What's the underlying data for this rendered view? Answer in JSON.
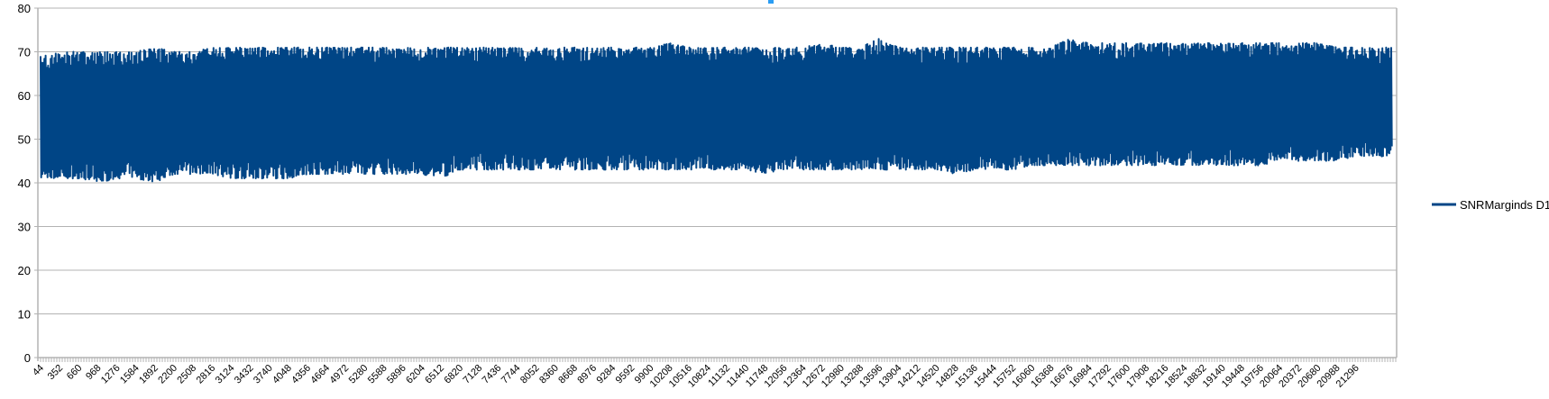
{
  "chart_data": {
    "type": "line",
    "title": "",
    "xlabel": "",
    "ylabel": "",
    "ylim": [
      0,
      80
    ],
    "yticks": [
      0,
      10,
      20,
      30,
      40,
      50,
      60,
      70,
      80
    ],
    "xlim": [
      44,
      22000
    ],
    "x_tick_labels": [
      "44",
      "352",
      "660",
      "968",
      "1276",
      "1584",
      "1892",
      "2200",
      "2508",
      "2816",
      "3124",
      "3432",
      "3740",
      "4048",
      "4356",
      "4664",
      "4972",
      "5280",
      "5588",
      "5896",
      "6204",
      "6512",
      "6820",
      "7128",
      "7436",
      "7744",
      "8052",
      "8360",
      "8668",
      "8976",
      "9284",
      "9592",
      "9900",
      "10208",
      "10516",
      "10824",
      "11132",
      "11440",
      "11748",
      "12056",
      "12364",
      "12672",
      "12980",
      "13288",
      "13596",
      "13904",
      "14212",
      "14520",
      "14828",
      "15136",
      "15444",
      "15752",
      "16060",
      "16368",
      "16676",
      "16984",
      "17292",
      "17600",
      "17908",
      "18216",
      "18524",
      "18832",
      "19140",
      "19448",
      "19756",
      "20064",
      "20372",
      "20680",
      "20988",
      "21296"
    ],
    "grid": true,
    "legend_position": "right",
    "series": [
      {
        "name": "SNRMarginds D1",
        "color": "#004586",
        "envelope_x": [
          44,
          352,
          660,
          968,
          1276,
          1584,
          1892,
          2200,
          2508,
          2816,
          3124,
          3432,
          3740,
          4048,
          4356,
          4664,
          4972,
          5280,
          5588,
          5896,
          6204,
          6512,
          6820,
          7128,
          7436,
          7744,
          8052,
          8360,
          8668,
          8976,
          9284,
          9592,
          9900,
          10208,
          10516,
          10824,
          11132,
          11440,
          11748,
          12056,
          12364,
          12672,
          12980,
          13288,
          13596,
          13904,
          14212,
          14520,
          14828,
          15136,
          15444,
          15752,
          16060,
          16368,
          16676,
          16984,
          17292,
          17600,
          17908,
          18216,
          18524,
          18832,
          19140,
          19448,
          19756,
          20064,
          20372,
          20680,
          20988,
          21296
        ],
        "envelope_max": [
          69,
          70,
          70,
          70,
          70,
          70,
          71,
          70,
          70,
          71,
          71,
          71,
          71,
          71,
          71,
          71,
          71,
          71,
          71,
          71,
          71,
          71,
          71,
          71,
          71,
          71,
          71,
          71,
          71,
          71,
          71,
          71,
          71,
          72,
          71,
          71,
          71,
          71,
          71,
          71,
          71,
          72,
          71,
          71,
          73,
          71,
          71,
          71,
          71,
          71,
          71,
          71,
          71,
          71,
          73,
          72,
          72,
          72,
          72,
          72,
          72,
          72,
          72,
          72,
          72,
          72,
          72,
          72,
          71,
          71
        ],
        "envelope_min": [
          41,
          41,
          41,
          40,
          41,
          41,
          40,
          42,
          42,
          42,
          41,
          41,
          41,
          41,
          42,
          42,
          42,
          42,
          42,
          42,
          42,
          41,
          43,
          43,
          43,
          43,
          43,
          43,
          43,
          43,
          43,
          43,
          43,
          43,
          43,
          43,
          43,
          43,
          42,
          43,
          43,
          43,
          43,
          43,
          43,
          43,
          43,
          43,
          42,
          43,
          43,
          43,
          44,
          44,
          44,
          44,
          44,
          44,
          44,
          44,
          44,
          44,
          44,
          44,
          44,
          45,
          45,
          45,
          45,
          46
        ]
      }
    ]
  },
  "accent_marker_color": "#2a9df4"
}
